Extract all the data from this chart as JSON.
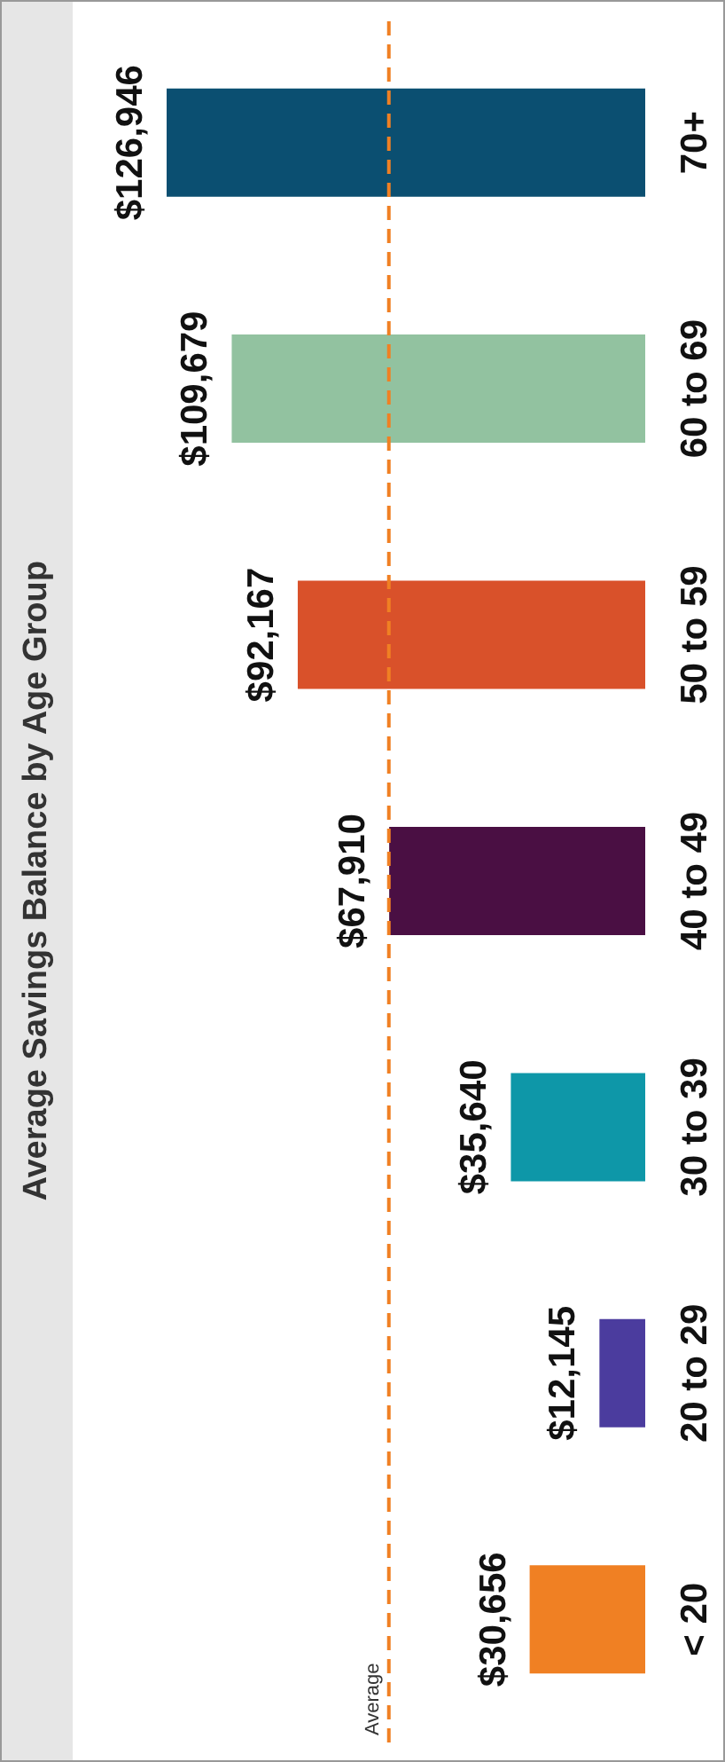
{
  "chart_data": {
    "type": "bar",
    "orientation": "horizontal",
    "title": "Average Savings Balance by Age Group",
    "categories": [
      "70+",
      "60 to 69",
      "50 to 59",
      "40 to 49",
      "30 to 39",
      "20 to 29",
      "< 20"
    ],
    "values": [
      126946,
      109679,
      92167,
      67910,
      35640,
      12145,
      30656
    ],
    "colors": [
      "#0b4f71",
      "#92c2a0",
      "#d9512a",
      "#4a0f43",
      "#0e97a8",
      "#4b3c9e",
      "#f08023"
    ],
    "value_labels": [
      "$126,946",
      "$109,679",
      "$92,167",
      "$67,910",
      "$35,640",
      "$12,145",
      "$30,656"
    ],
    "ref_lines": [
      {
        "axis": "x",
        "value": 68000,
        "label": "Average",
        "color": "#f08023",
        "line_style": "dashed"
      }
    ],
    "legend": false,
    "grid": false
  }
}
